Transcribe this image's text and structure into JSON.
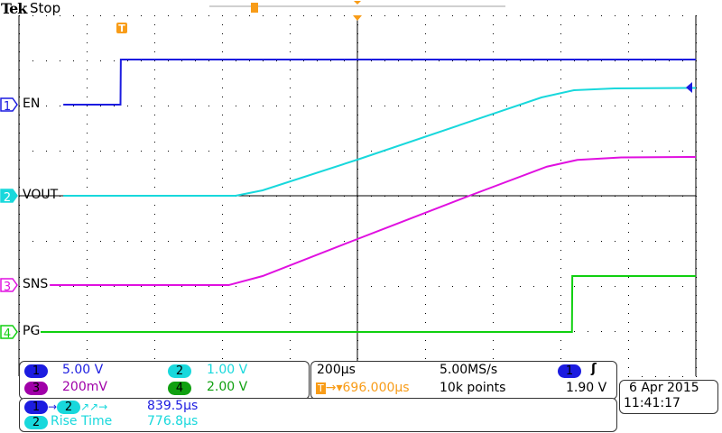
{
  "header": {
    "brand": "Tek",
    "status": "Stop"
  },
  "colors": {
    "ch1": "#1c1ce0",
    "ch2": "#18d8dc",
    "ch3": "#e010e0",
    "ch4": "#10d010",
    "trigger": "#f89c18",
    "ch1_dark": "#1414e6",
    "ch3_dark": "#a000a8",
    "ch4_dark": "#10a010"
  },
  "chart_data": {
    "type": "line",
    "time_per_div_us": 200,
    "x_range_us": [
      0,
      2000
    ],
    "grid": true,
    "divisions": {
      "horizontal": 10,
      "vertical": 8
    },
    "series": [
      {
        "channel": "1",
        "name": "EN",
        "scale_per_div_V": 5.0,
        "points": [
          [
            131,
            0
          ],
          [
            300,
            0
          ],
          [
            301,
            5.0
          ],
          [
            2000,
            5.0
          ]
        ]
      },
      {
        "channel": "2",
        "name": "VOUT",
        "scale_per_div_V": 1.0,
        "points": [
          [
            131,
            0
          ],
          [
            640,
            0
          ],
          [
            720,
            0.12
          ],
          [
            1000,
            0.8
          ],
          [
            1544,
            2.18
          ],
          [
            1640,
            2.34
          ],
          [
            1760,
            2.38
          ],
          [
            2000,
            2.39
          ]
        ]
      },
      {
        "channel": "3",
        "name": "SNS",
        "scale_per_div_V": 0.2,
        "points": [
          [
            91,
            0
          ],
          [
            620,
            0
          ],
          [
            720,
            0.04
          ],
          [
            1000,
            0.204
          ],
          [
            1331,
            0.396
          ],
          [
            1560,
            0.525
          ],
          [
            1650,
            0.555
          ],
          [
            1780,
            0.566
          ],
          [
            2000,
            0.568
          ]
        ]
      },
      {
        "channel": "4",
        "name": "PG",
        "scale_per_div_V": 2.0,
        "points": [
          [
            64,
            0
          ],
          [
            1634,
            0
          ],
          [
            1635,
            2.48
          ],
          [
            2000,
            2.48
          ]
        ]
      }
    ],
    "trigger_level_V": 1.9
  },
  "channels": [
    {
      "num": "1",
      "label": "EN",
      "scale": "5.00 V"
    },
    {
      "num": "2",
      "label": "VOUT",
      "scale": "1.00 V"
    },
    {
      "num": "3",
      "label": "SNS",
      "scale": "200mV"
    },
    {
      "num": "4",
      "label": "PG",
      "scale": "2.00 V"
    }
  ],
  "trigger_marker": "T",
  "timebase": {
    "scale": "200µs",
    "sample_rate": "5.00MS/s",
    "trigger_pos": "696.000µs",
    "record_length": "10k points",
    "trigger_channel": "1",
    "trigger_level": "1.90 V",
    "trigger_slope_icon": "rising-edge-icon"
  },
  "measurements": [
    {
      "channel": "1",
      "to_channel": "2",
      "label": "→",
      "glyphs": "↗↗→",
      "value": "839.5µs"
    },
    {
      "channel": "2",
      "label": "Rise Time",
      "value": "776.8µs"
    }
  ],
  "datetime": {
    "date": "6 Apr  2015",
    "time": "11:41:17"
  }
}
